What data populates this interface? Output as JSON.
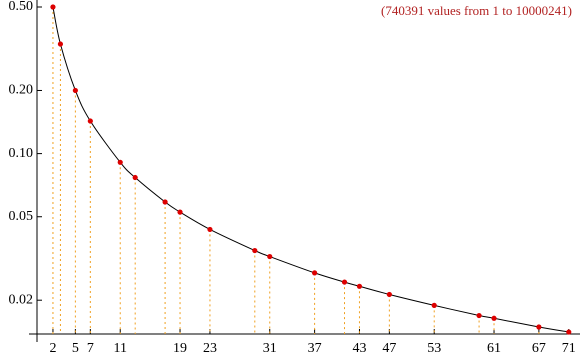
{
  "chart_data": {
    "type": "scatter",
    "annotation": "(740391 values from 1 to 10000241)",
    "x": [
      2,
      3,
      5,
      7,
      11,
      13,
      17,
      19,
      23,
      29,
      31,
      37,
      41,
      43,
      47,
      53,
      59,
      61,
      67,
      71
    ],
    "values": [
      0.5,
      0.333,
      0.2,
      0.143,
      0.0909,
      0.0769,
      0.0588,
      0.0526,
      0.0435,
      0.0345,
      0.0323,
      0.027,
      0.0244,
      0.0233,
      0.0213,
      0.0189,
      0.0169,
      0.0164,
      0.0149,
      0.0141
    ],
    "color": "#dd0000",
    "line_color": "#000000",
    "drop_line_color": "#f0a020",
    "xlim": [
      0,
      72.5
    ],
    "xticks": [
      2,
      5,
      7,
      11,
      19,
      23,
      31,
      37,
      43,
      47,
      53,
      61,
      67,
      71
    ],
    "ylim": [
      0.0138,
      0.54
    ],
    "y_scale": "log",
    "yticks": [
      {
        "value": 0.5,
        "label": "0.50"
      },
      {
        "value": 0.2,
        "label": "0.20"
      },
      {
        "value": 0.1,
        "label": "0.10"
      },
      0.05,
      0.02
    ]
  }
}
